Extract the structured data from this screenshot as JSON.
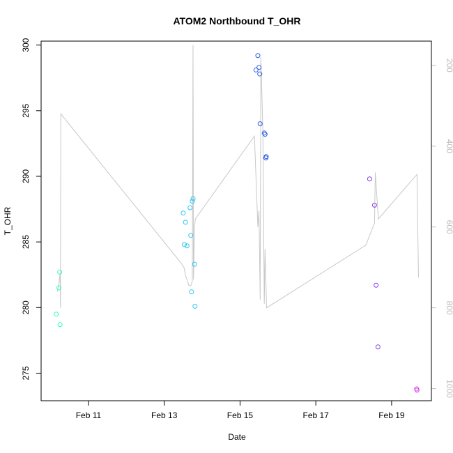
{
  "chart_data": {
    "type": "scatter",
    "title": "ATOM2 Northbound T_OHR",
    "xlabel": "Date",
    "ylabel": "T_OHR",
    "x_axis": {
      "min": 9.75,
      "max": 20.05,
      "ticks": [
        {
          "value": 11,
          "label": "Feb 11"
        },
        {
          "value": 13,
          "label": "Feb 13"
        },
        {
          "value": 15,
          "label": "Feb 15"
        },
        {
          "value": 17,
          "label": "Feb 17"
        },
        {
          "value": 19,
          "label": "Feb 19"
        }
      ]
    },
    "y_left": {
      "min": 272.9,
      "max": 300.3,
      "ticks": [
        275,
        280,
        285,
        290,
        295,
        300
      ]
    },
    "y_right": {
      "min": 1030,
      "max": 140,
      "ticks": [
        200,
        400,
        600,
        800,
        1000
      ],
      "color": "#bdbdbd"
    },
    "points": [
      {
        "x": 10.15,
        "y": 279.5,
        "color": "#2effb6"
      },
      {
        "x": 10.22,
        "y": 281.5,
        "color": "#2effb6"
      },
      {
        "x": 10.24,
        "y": 282.7,
        "color": "#2effb6"
      },
      {
        "x": 10.25,
        "y": 278.7,
        "color": "#2effb6"
      },
      {
        "x": 13.5,
        "y": 287.2,
        "color": "#2ec8f0"
      },
      {
        "x": 13.53,
        "y": 284.8,
        "color": "#2ec8f0"
      },
      {
        "x": 13.56,
        "y": 286.5,
        "color": "#2ec8f0"
      },
      {
        "x": 13.6,
        "y": 284.7,
        "color": "#2ec8f0"
      },
      {
        "x": 13.68,
        "y": 287.6,
        "color": "#2ec8f0"
      },
      {
        "x": 13.7,
        "y": 285.5,
        "color": "#2ec8f0"
      },
      {
        "x": 13.72,
        "y": 281.2,
        "color": "#2ec8f0"
      },
      {
        "x": 13.74,
        "y": 288.1,
        "color": "#2ec8f0"
      },
      {
        "x": 13.76,
        "y": 288.3,
        "color": "#2ec8f0"
      },
      {
        "x": 13.8,
        "y": 283.3,
        "color": "#2ec8f0"
      },
      {
        "x": 13.81,
        "y": 280.1,
        "color": "#2ec8f0"
      },
      {
        "x": 15.42,
        "y": 298.1,
        "color": "#2a5ce0"
      },
      {
        "x": 15.47,
        "y": 299.2,
        "color": "#2a5ce0"
      },
      {
        "x": 15.5,
        "y": 298.3,
        "color": "#2a5ce0"
      },
      {
        "x": 15.52,
        "y": 297.8,
        "color": "#2a5ce0"
      },
      {
        "x": 15.53,
        "y": 294.0,
        "color": "#2a5ce0"
      },
      {
        "x": 15.64,
        "y": 293.3,
        "color": "#2a5ce0"
      },
      {
        "x": 15.66,
        "y": 293.2,
        "color": "#2a5ce0"
      },
      {
        "x": 15.68,
        "y": 291.4,
        "color": "#2a5ce0"
      },
      {
        "x": 15.69,
        "y": 291.5,
        "color": "#2a5ce0"
      },
      {
        "x": 18.42,
        "y": 289.8,
        "color": "#8a3cf0"
      },
      {
        "x": 18.55,
        "y": 287.8,
        "color": "#8a3cf0"
      },
      {
        "x": 18.59,
        "y": 281.7,
        "color": "#8a3cf0"
      },
      {
        "x": 18.64,
        "y": 277.0,
        "color": "#8a3cf0"
      },
      {
        "x": 19.66,
        "y": 273.8,
        "color": "#e040f0"
      },
      {
        "x": 19.67,
        "y": 273.7,
        "color": "#e040f0"
      }
    ],
    "line": {
      "color": "#c8c8c8",
      "axis": "right",
      "points": [
        [
          10.18,
          760
        ],
        [
          10.22,
          740
        ],
        [
          10.25,
          715
        ],
        [
          10.26,
          800
        ],
        [
          10.27,
          320
        ],
        [
          13.45,
          690
        ],
        [
          13.52,
          700
        ],
        [
          13.56,
          720
        ],
        [
          13.62,
          735
        ],
        [
          13.65,
          745
        ],
        [
          13.7,
          745
        ],
        [
          13.74,
          735
        ],
        [
          13.76,
          150
        ],
        [
          13.77,
          730
        ],
        [
          13.8,
          600
        ],
        [
          13.82,
          580
        ],
        [
          15.38,
          375
        ],
        [
          15.47,
          600
        ],
        [
          15.5,
          560
        ],
        [
          15.53,
          780
        ],
        [
          15.55,
          180
        ],
        [
          15.6,
          355
        ],
        [
          15.64,
          790
        ],
        [
          15.66,
          655
        ],
        [
          15.7,
          800
        ],
        [
          18.32,
          645
        ],
        [
          18.55,
          590
        ],
        [
          18.57,
          465
        ],
        [
          18.65,
          580
        ],
        [
          19.67,
          470
        ],
        [
          19.71,
          725
        ]
      ]
    }
  }
}
